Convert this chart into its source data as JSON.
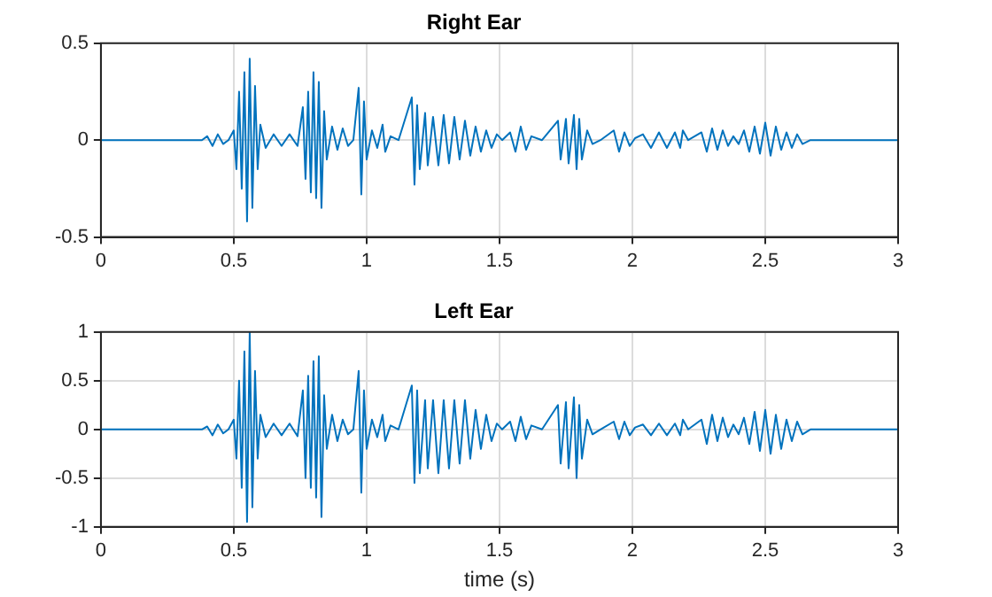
{
  "chart_data": [
    {
      "type": "line",
      "title": "Right Ear",
      "xlim": [
        0,
        3
      ],
      "xticks": [
        0,
        0.5,
        1,
        1.5,
        2,
        2.5,
        3
      ],
      "ylim": [
        -0.5,
        0.5
      ],
      "yticks": [
        -0.5,
        0,
        0.5
      ],
      "grid": true,
      "marker": "none",
      "line_style": "solid",
      "series": [
        {
          "color": "#0072bd",
          "x": [
            0,
            0.38,
            0.4,
            0.42,
            0.44,
            0.46,
            0.48,
            0.5,
            0.51,
            0.52,
            0.53,
            0.54,
            0.55,
            0.56,
            0.57,
            0.58,
            0.59,
            0.6,
            0.62,
            0.65,
            0.68,
            0.71,
            0.74,
            0.76,
            0.77,
            0.78,
            0.79,
            0.8,
            0.81,
            0.82,
            0.83,
            0.84,
            0.85,
            0.87,
            0.89,
            0.91,
            0.93,
            0.95,
            0.97,
            0.98,
            0.99,
            1.0,
            1.02,
            1.04,
            1.06,
            1.07,
            1.09,
            1.12,
            1.17,
            1.18,
            1.19,
            1.2,
            1.22,
            1.23,
            1.25,
            1.27,
            1.29,
            1.31,
            1.33,
            1.35,
            1.37,
            1.39,
            1.41,
            1.43,
            1.45,
            1.47,
            1.49,
            1.51,
            1.54,
            1.56,
            1.58,
            1.6,
            1.62,
            1.66,
            1.72,
            1.73,
            1.75,
            1.76,
            1.78,
            1.79,
            1.8,
            1.81,
            1.83,
            1.85,
            1.88,
            1.93,
            1.95,
            1.97,
            1.99,
            2.01,
            2.04,
            2.07,
            2.1,
            2.13,
            2.16,
            2.18,
            2.19,
            2.21,
            2.26,
            2.28,
            2.3,
            2.32,
            2.34,
            2.36,
            2.38,
            2.4,
            2.42,
            2.44,
            2.46,
            2.48,
            2.5,
            2.52,
            2.54,
            2.56,
            2.58,
            2.6,
            2.62,
            2.64,
            2.67,
            3
          ],
          "values": [
            0,
            0,
            0.02,
            -0.03,
            0.03,
            -0.02,
            0,
            0.05,
            -0.15,
            0.25,
            -0.25,
            0.35,
            -0.42,
            0.42,
            -0.35,
            0.28,
            -0.15,
            0.08,
            -0.04,
            0.03,
            -0.03,
            0.03,
            -0.03,
            0.17,
            -0.2,
            0.25,
            -0.27,
            0.35,
            -0.3,
            0.3,
            -0.35,
            0.15,
            -0.1,
            0.07,
            -0.05,
            0.06,
            -0.03,
            0,
            0.27,
            -0.28,
            0.2,
            -0.1,
            0.05,
            -0.04,
            0.08,
            -0.06,
            0.02,
            0,
            0.22,
            -0.23,
            0.18,
            -0.15,
            0.14,
            -0.13,
            0.12,
            -0.13,
            0.13,
            -0.12,
            0.12,
            -0.1,
            0.1,
            -0.08,
            0.07,
            -0.06,
            0.05,
            -0.04,
            0.03,
            0,
            0.04,
            -0.06,
            0.07,
            -0.05,
            0.02,
            0,
            0.1,
            -0.1,
            0.11,
            -0.12,
            0.13,
            -0.15,
            0.11,
            -0.1,
            0.05,
            -0.02,
            0,
            0.05,
            -0.06,
            0.04,
            -0.03,
            0.01,
            0.03,
            -0.04,
            0.04,
            -0.04,
            0.04,
            -0.04,
            0.05,
            0,
            0.04,
            -0.06,
            0.06,
            -0.05,
            0.05,
            -0.03,
            0.02,
            -0.02,
            0.05,
            -0.06,
            0.07,
            -0.07,
            0.09,
            -0.08,
            0.07,
            -0.05,
            0.04,
            -0.04,
            0.03,
            -0.02,
            0,
            0
          ]
        }
      ]
    },
    {
      "type": "line",
      "title": "Left Ear",
      "xlabel": "time (s)",
      "xlim": [
        0,
        3
      ],
      "xticks": [
        0,
        0.5,
        1,
        1.5,
        2,
        2.5,
        3
      ],
      "ylim": [
        -1,
        1
      ],
      "yticks": [
        -1,
        -0.5,
        0,
        0.5,
        1
      ],
      "grid": true,
      "marker": "none",
      "line_style": "solid",
      "series": [
        {
          "color": "#0072bd",
          "x": [
            0,
            0.38,
            0.4,
            0.42,
            0.44,
            0.46,
            0.48,
            0.5,
            0.51,
            0.52,
            0.53,
            0.54,
            0.55,
            0.56,
            0.57,
            0.58,
            0.59,
            0.6,
            0.62,
            0.65,
            0.68,
            0.71,
            0.74,
            0.76,
            0.77,
            0.78,
            0.79,
            0.8,
            0.81,
            0.82,
            0.83,
            0.84,
            0.85,
            0.87,
            0.89,
            0.91,
            0.93,
            0.95,
            0.97,
            0.98,
            0.99,
            1.0,
            1.02,
            1.04,
            1.06,
            1.07,
            1.09,
            1.12,
            1.17,
            1.18,
            1.19,
            1.2,
            1.22,
            1.23,
            1.25,
            1.27,
            1.29,
            1.31,
            1.33,
            1.35,
            1.37,
            1.39,
            1.41,
            1.43,
            1.45,
            1.47,
            1.49,
            1.51,
            1.54,
            1.56,
            1.58,
            1.6,
            1.62,
            1.66,
            1.72,
            1.73,
            1.75,
            1.76,
            1.78,
            1.79,
            1.8,
            1.81,
            1.83,
            1.85,
            1.88,
            1.93,
            1.95,
            1.97,
            1.99,
            2.01,
            2.04,
            2.07,
            2.1,
            2.13,
            2.16,
            2.18,
            2.19,
            2.21,
            2.26,
            2.28,
            2.3,
            2.32,
            2.34,
            2.36,
            2.38,
            2.4,
            2.42,
            2.44,
            2.46,
            2.48,
            2.5,
            2.52,
            2.54,
            2.56,
            2.58,
            2.6,
            2.62,
            2.64,
            2.67,
            3
          ],
          "values": [
            0,
            0,
            0.03,
            -0.06,
            0.05,
            -0.04,
            0,
            0.1,
            -0.3,
            0.5,
            -0.6,
            0.8,
            -0.95,
            1.0,
            -0.8,
            0.6,
            -0.3,
            0.15,
            -0.08,
            0.06,
            -0.06,
            0.06,
            -0.07,
            0.4,
            -0.5,
            0.55,
            -0.6,
            0.7,
            -0.7,
            0.75,
            -0.9,
            0.35,
            -0.2,
            0.15,
            -0.12,
            0.1,
            -0.05,
            0,
            0.6,
            -0.65,
            0.4,
            -0.2,
            0.1,
            -0.08,
            0.15,
            -0.12,
            0.04,
            0,
            0.45,
            -0.55,
            0.4,
            -0.45,
            0.3,
            -0.4,
            0.3,
            -0.45,
            0.3,
            -0.4,
            0.3,
            -0.35,
            0.3,
            -0.3,
            0.2,
            -0.2,
            0.15,
            -0.12,
            0.06,
            0,
            0.08,
            -0.12,
            0.13,
            -0.1,
            0.04,
            0,
            0.25,
            -0.35,
            0.28,
            -0.4,
            0.33,
            -0.5,
            0.25,
            -0.3,
            0.1,
            -0.05,
            0,
            0.08,
            -0.1,
            0.08,
            -0.06,
            0.02,
            0.05,
            -0.06,
            0.06,
            -0.06,
            0.06,
            -0.06,
            0.1,
            0,
            0.1,
            -0.15,
            0.15,
            -0.12,
            0.12,
            -0.08,
            0.05,
            -0.05,
            0.12,
            -0.15,
            0.18,
            -0.22,
            0.2,
            -0.25,
            0.15,
            -0.2,
            0.1,
            -0.12,
            0.08,
            -0.05,
            0,
            0
          ]
        }
      ]
    }
  ]
}
